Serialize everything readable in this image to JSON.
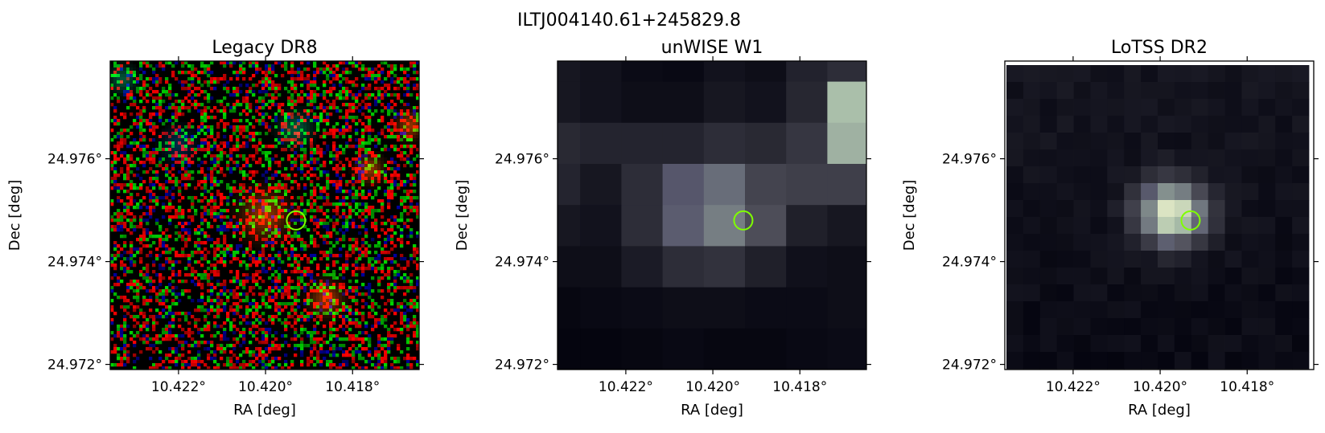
{
  "figure": {
    "suptitle": "ILTJ004140.61+245829.8"
  },
  "chart_data": [
    {
      "type": "heatmap",
      "title": "Legacy DR8",
      "xlabel": "RA [deg]",
      "ylabel": "Dec [deg]",
      "xticks": [
        "10.422°",
        "10.420°",
        "10.418°"
      ],
      "yticks": [
        "24.976°",
        "24.974°",
        "24.972°"
      ],
      "colormap": "rgb-composite",
      "marker": {
        "shape": "circle",
        "color": "#7fff00",
        "ra": 10.4193,
        "dec": 24.9748
      }
    },
    {
      "type": "heatmap",
      "title": "unWISE W1",
      "xlabel": "RA [deg]",
      "ylabel": "Dec [deg]",
      "xticks": [
        "10.422°",
        "10.420°",
        "10.418°"
      ],
      "yticks": [
        "24.976°",
        "24.974°",
        "24.972°"
      ],
      "colormap": "bone",
      "marker": {
        "shape": "circle",
        "color": "#7fff00",
        "ra": 10.4193,
        "dec": 24.9748
      }
    },
    {
      "type": "heatmap",
      "title": "LoTSS DR2",
      "xlabel": "RA [deg]",
      "ylabel": "Dec [deg]",
      "xticks": [
        "10.422°",
        "10.420°",
        "10.418°"
      ],
      "yticks": [
        "24.976°",
        "24.974°",
        "24.972°"
      ],
      "colormap": "bone",
      "marker": {
        "shape": "circle",
        "color": "#7fff00",
        "ra": 10.4193,
        "dec": 24.9748
      }
    }
  ]
}
